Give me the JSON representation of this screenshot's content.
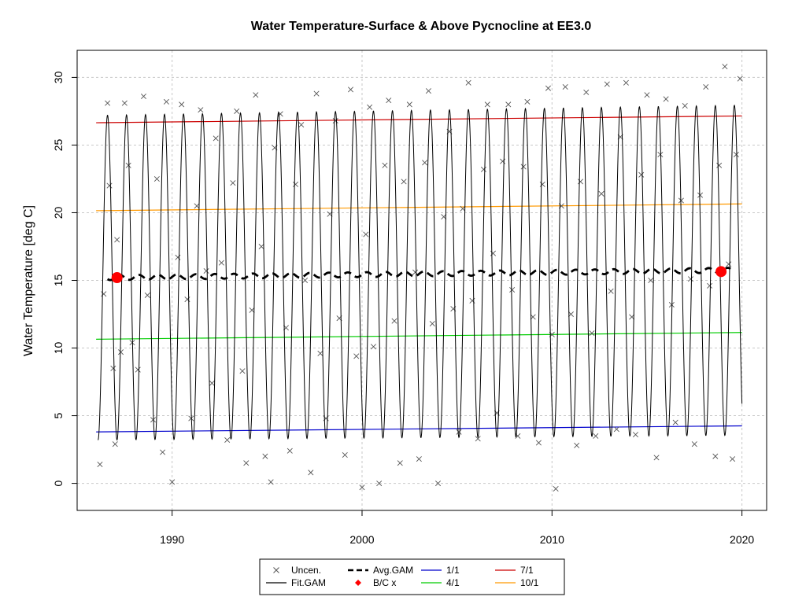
{
  "chart_data": {
    "type": "line",
    "title": "Water Temperature-Surface & Above Pycnocline at EE3.0",
    "xlabel": "",
    "ylabel": "Water Temperature [deg C]",
    "xlim": [
      1985,
      2021.3
    ],
    "ylim": [
      -2,
      32
    ],
    "x_ticks": [
      1990,
      2000,
      2010,
      2020
    ],
    "x_tick_labels": [
      "1990",
      "2000",
      "2010",
      "2020"
    ],
    "y_ticks": [
      0,
      5,
      10,
      15,
      20,
      25,
      30
    ],
    "y_tick_labels": [
      "0",
      "5",
      "10",
      "15",
      "20",
      "25",
      "30"
    ],
    "grid": true,
    "legend_position": "bottom",
    "series": [
      {
        "name": "1/1",
        "color": "#0000cc",
        "x": [
          1986,
          2020
        ],
        "y": [
          3.8,
          4.25
        ]
      },
      {
        "name": "4/1",
        "color": "#00cc00",
        "x": [
          1986,
          2020
        ],
        "y": [
          10.65,
          11.15
        ]
      },
      {
        "name": "7/1",
        "color": "#cc0000",
        "x": [
          1986,
          2020
        ],
        "y": [
          26.65,
          27.15
        ]
      },
      {
        "name": "10/1",
        "color": "#ff9900",
        "x": [
          1986,
          2020
        ],
        "y": [
          20.15,
          20.65
        ]
      },
      {
        "name": "Avg.GAM",
        "color": "#000000",
        "style": "dashed",
        "x": [
          1986.6,
          2019.4
        ],
        "y": [
          15.2,
          15.75
        ]
      },
      {
        "name": "Fit.GAM",
        "color": "#000000",
        "style": "seasonal",
        "x_start": 1986.1,
        "x_end": 2020,
        "amp_center": [
          15.2,
          15.75
        ],
        "amp_half": [
          12.0,
          12.2
        ]
      }
    ],
    "bc_points": {
      "name": "B/C x",
      "color": "#ff0000",
      "x": [
        1987.1,
        2018.9
      ],
      "y": [
        15.2,
        15.65
      ]
    },
    "uncensored": {
      "name": "Uncen.",
      "color": "#555555",
      "x": [
        1986.2,
        1986.4,
        1986.6,
        1986.7,
        1986.9,
        1987.0,
        1987.1,
        1987.3,
        1987.5,
        1987.7,
        1987.9,
        1988.2,
        1988.5,
        1988.7,
        1989.0,
        1989.2,
        1989.5,
        1989.7,
        1990.0,
        1990.3,
        1990.5,
        1990.8,
        1991.0,
        1991.3,
        1991.5,
        1991.8,
        1992.1,
        1992.3,
        1992.6,
        1992.9,
        1993.2,
        1993.4,
        1993.7,
        1993.9,
        1994.2,
        1994.4,
        1994.7,
        1994.9,
        1995.2,
        1995.4,
        1995.7,
        1996.0,
        1996.2,
        1996.5,
        1996.8,
        1997.0,
        1997.3,
        1997.6,
        1997.8,
        1998.1,
        1998.3,
        1998.6,
        1998.8,
        1999.1,
        1999.4,
        1999.7,
        2000.0,
        2000.2,
        2000.4,
        2000.6,
        2000.9,
        2001.2,
        2001.4,
        2001.7,
        2002.0,
        2002.2,
        2002.5,
        2002.8,
        2003.0,
        2003.3,
        2003.5,
        2003.7,
        2004.0,
        2004.3,
        2004.6,
        2004.8,
        2005.1,
        2005.3,
        2005.6,
        2005.8,
        2006.1,
        2006.4,
        2006.6,
        2006.9,
        2007.1,
        2007.4,
        2007.7,
        2007.9,
        2008.2,
        2008.5,
        2008.7,
        2009.0,
        2009.3,
        2009.5,
        2009.8,
        2010.0,
        2010.2,
        2010.5,
        2010.7,
        2011.0,
        2011.3,
        2011.5,
        2011.8,
        2012.1,
        2012.3,
        2012.6,
        2012.9,
        2013.1,
        2013.4,
        2013.6,
        2013.9,
        2014.2,
        2014.4,
        2014.7,
        2015.0,
        2015.2,
        2015.5,
        2015.7,
        2016.0,
        2016.3,
        2016.5,
        2016.8,
        2017.0,
        2017.3,
        2017.5,
        2017.8,
        2018.1,
        2018.3,
        2018.6,
        2018.8,
        2019.1,
        2019.3,
        2019.5,
        2019.7,
        2019.9
      ],
      "y": [
        1.4,
        14.0,
        28.1,
        22.0,
        8.5,
        2.9,
        18.0,
        9.7,
        28.1,
        23.5,
        10.4,
        8.4,
        28.6,
        13.9,
        4.7,
        22.5,
        2.3,
        28.2,
        0.1,
        16.7,
        28.0,
        13.6,
        4.8,
        20.5,
        27.6,
        15.7,
        7.4,
        25.5,
        16.3,
        3.2,
        22.2,
        27.5,
        8.3,
        1.5,
        12.8,
        28.7,
        17.5,
        2.0,
        0.1,
        24.8,
        27.3,
        11.5,
        2.4,
        22.1,
        26.5,
        15.0,
        0.8,
        28.8,
        9.6,
        4.8,
        19.9,
        26.8,
        12.2,
        2.1,
        29.1,
        9.4,
        -0.3,
        18.4,
        27.8,
        10.1,
        0.0,
        23.5,
        28.3,
        12.0,
        1.5,
        22.3,
        28.0,
        15.6,
        1.8,
        23.7,
        29.0,
        11.8,
        0.0,
        19.7,
        26.0,
        12.9,
        3.8,
        20.3,
        29.6,
        13.5,
        3.3,
        23.2,
        28.0,
        17.0,
        5.2,
        23.8,
        28.0,
        14.3,
        3.5,
        23.4,
        28.2,
        12.3,
        3.0,
        22.1,
        29.2,
        11.0,
        -0.4,
        20.5,
        29.3,
        12.5,
        2.8,
        22.3,
        28.9,
        11.1,
        3.5,
        21.4,
        29.5,
        14.2,
        4.0,
        25.6,
        29.6,
        12.3,
        3.6,
        22.8,
        28.7,
        15.0,
        1.9,
        24.3,
        28.4,
        13.2,
        4.5,
        20.9,
        27.9,
        15.1,
        2.9,
        21.3,
        29.3,
        14.6,
        2.0,
        23.5,
        30.8,
        16.2,
        1.8,
        24.3,
        29.9
      ]
    }
  },
  "legend": {
    "items": [
      {
        "label": "Uncen.",
        "symbol": "x",
        "color": "#555555"
      },
      {
        "label": "Fit.GAM",
        "symbol": "line",
        "color": "#000000"
      },
      {
        "label": "Avg.GAM",
        "symbol": "dash",
        "color": "#000000"
      },
      {
        "label": "B/C x",
        "symbol": "diamond",
        "color": "#ff0000"
      },
      {
        "label": "1/1",
        "symbol": "line",
        "color": "#0000cc"
      },
      {
        "label": "4/1",
        "symbol": "line",
        "color": "#00cc00"
      },
      {
        "label": "7/1",
        "symbol": "line",
        "color": "#cc0000"
      },
      {
        "label": "10/1",
        "symbol": "line",
        "color": "#ff9900"
      }
    ]
  }
}
